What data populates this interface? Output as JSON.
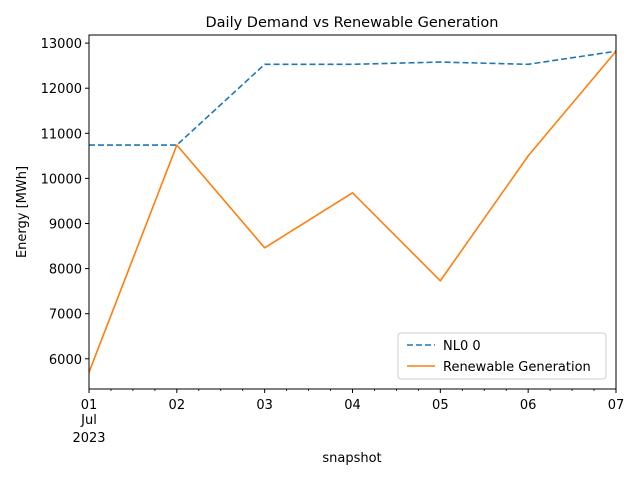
{
  "chart_data": {
    "type": "line",
    "title": "Daily Demand vs Renewable Generation",
    "xlabel": "snapshot",
    "ylabel": "Energy [MWh]",
    "x": [
      "2023-07-01",
      "2023-07-02",
      "2023-07-03",
      "2023-07-04",
      "2023-07-05",
      "2023-07-06",
      "2023-07-07"
    ],
    "x_tick_labels": [
      "01",
      "02",
      "03",
      "04",
      "05",
      "06",
      "07"
    ],
    "x_tick_sublabel": {
      "month": "Jul",
      "year": "2023"
    },
    "xlim": [
      "2023-07-01",
      "2023-07-07"
    ],
    "ylim": [
      5330,
      13180
    ],
    "yticks": [
      6000,
      7000,
      8000,
      9000,
      10000,
      11000,
      12000,
      13000
    ],
    "grid": false,
    "legend_position": "lower right",
    "series": [
      {
        "name": "NL0 0",
        "color": "#1f77b4",
        "line_style": "dashed",
        "values": [
          10740,
          10740,
          12530,
          12530,
          12580,
          12530,
          12820
        ]
      },
      {
        "name": "Renewable Generation",
        "color": "#ff7f0e",
        "line_style": "solid",
        "values": [
          5700,
          10740,
          8460,
          9680,
          7730,
          10500,
          12820
        ]
      }
    ]
  }
}
